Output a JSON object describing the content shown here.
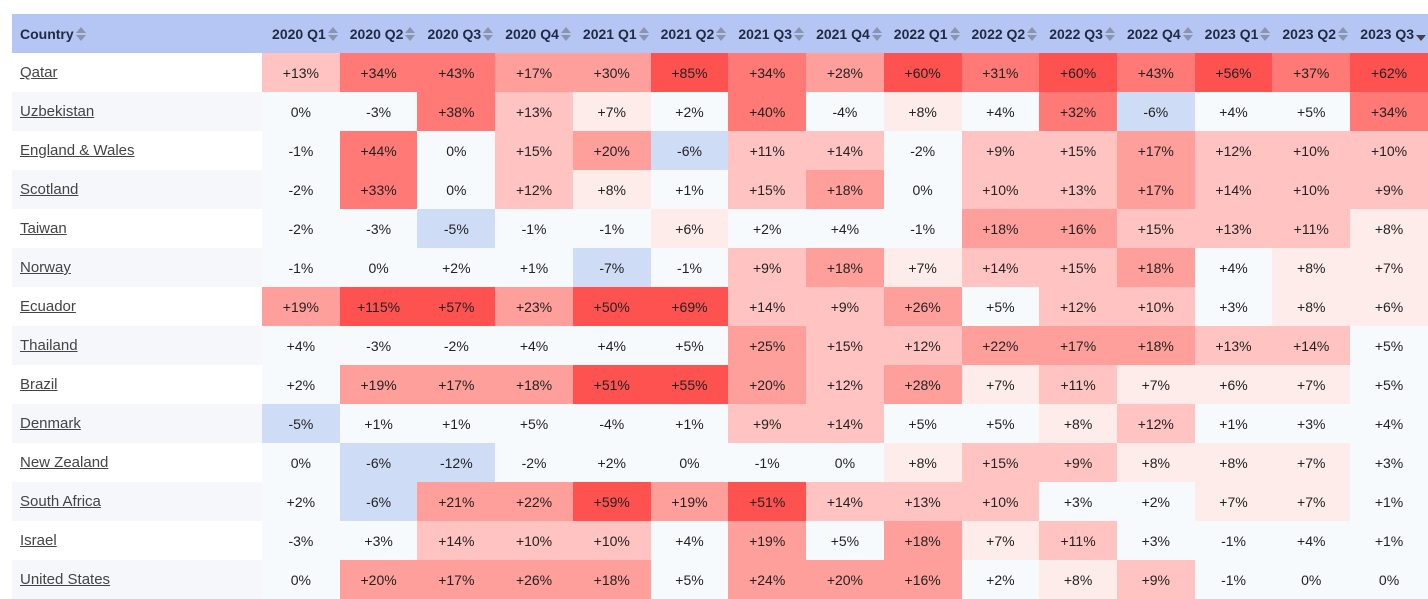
{
  "table": {
    "country_header": "Country",
    "columns": [
      "2020 Q1",
      "2020 Q2",
      "2020 Q3",
      "2020 Q4",
      "2021 Q1",
      "2021 Q2",
      "2021 Q3",
      "2021 Q4",
      "2022 Q1",
      "2022 Q2",
      "2022 Q3",
      "2022 Q4",
      "2023 Q1",
      "2023 Q2",
      "2023 Q3"
    ],
    "sorted_column": "2023 Q3",
    "sort_direction": "desc",
    "colors": {
      "header_bg": "#b6c6f4",
      "negative": "#cfdcf6",
      "neutral": "#f7fafd",
      "positive_scale": [
        "#fdecea",
        "#ffc4c2",
        "#ff9f9c",
        "#ff7a76",
        "#fe5251"
      ]
    },
    "rows": [
      {
        "country": "Qatar",
        "values": [
          "+13%",
          "+34%",
          "+43%",
          "+17%",
          "+30%",
          "+85%",
          "+34%",
          "+28%",
          "+60%",
          "+31%",
          "+60%",
          "+43%",
          "+56%",
          "+37%",
          "+62%"
        ]
      },
      {
        "country": "Uzbekistan",
        "values": [
          "0%",
          "-3%",
          "+38%",
          "+13%",
          "+7%",
          "+2%",
          "+40%",
          "-4%",
          "+8%",
          "+4%",
          "+32%",
          "-6%",
          "+4%",
          "+5%",
          "+34%"
        ]
      },
      {
        "country": "England & Wales",
        "values": [
          "-1%",
          "+44%",
          "0%",
          "+15%",
          "+20%",
          "-6%",
          "+11%",
          "+14%",
          "-2%",
          "+9%",
          "+15%",
          "+17%",
          "+12%",
          "+10%",
          "+10%"
        ]
      },
      {
        "country": "Scotland",
        "values": [
          "-2%",
          "+33%",
          "0%",
          "+12%",
          "+8%",
          "+1%",
          "+15%",
          "+18%",
          "0%",
          "+10%",
          "+13%",
          "+17%",
          "+14%",
          "+10%",
          "+9%"
        ]
      },
      {
        "country": "Taiwan",
        "values": [
          "-2%",
          "-3%",
          "-5%",
          "-1%",
          "-1%",
          "+6%",
          "+2%",
          "+4%",
          "-1%",
          "+18%",
          "+16%",
          "+15%",
          "+13%",
          "+11%",
          "+8%"
        ]
      },
      {
        "country": "Norway",
        "values": [
          "-1%",
          "0%",
          "+2%",
          "+1%",
          "-7%",
          "-1%",
          "+9%",
          "+18%",
          "+7%",
          "+14%",
          "+15%",
          "+18%",
          "+4%",
          "+8%",
          "+7%"
        ]
      },
      {
        "country": "Ecuador",
        "values": [
          "+19%",
          "+115%",
          "+57%",
          "+23%",
          "+50%",
          "+69%",
          "+14%",
          "+9%",
          "+26%",
          "+5%",
          "+12%",
          "+10%",
          "+3%",
          "+8%",
          "+6%"
        ]
      },
      {
        "country": "Thailand",
        "values": [
          "+4%",
          "-3%",
          "-2%",
          "+4%",
          "+4%",
          "+5%",
          "+25%",
          "+15%",
          "+12%",
          "+22%",
          "+17%",
          "+18%",
          "+13%",
          "+14%",
          "+5%"
        ]
      },
      {
        "country": "Brazil",
        "values": [
          "+2%",
          "+19%",
          "+17%",
          "+18%",
          "+51%",
          "+55%",
          "+20%",
          "+12%",
          "+28%",
          "+7%",
          "+11%",
          "+7%",
          "+6%",
          "+7%",
          "+5%"
        ]
      },
      {
        "country": "Denmark",
        "values": [
          "-5%",
          "+1%",
          "+1%",
          "+5%",
          "-4%",
          "+1%",
          "+9%",
          "+14%",
          "+5%",
          "+5%",
          "+8%",
          "+12%",
          "+1%",
          "+3%",
          "+4%"
        ]
      },
      {
        "country": "New Zealand",
        "values": [
          "0%",
          "-6%",
          "-12%",
          "-2%",
          "+2%",
          "0%",
          "-1%",
          "0%",
          "+8%",
          "+15%",
          "+9%",
          "+8%",
          "+8%",
          "+7%",
          "+3%"
        ]
      },
      {
        "country": "South Africa",
        "values": [
          "+2%",
          "-6%",
          "+21%",
          "+22%",
          "+59%",
          "+19%",
          "+51%",
          "+14%",
          "+13%",
          "+10%",
          "+3%",
          "+2%",
          "+7%",
          "+7%",
          "+1%"
        ]
      },
      {
        "country": "Israel",
        "values": [
          "-3%",
          "+3%",
          "+14%",
          "+10%",
          "+10%",
          "+4%",
          "+19%",
          "+5%",
          "+18%",
          "+7%",
          "+11%",
          "+3%",
          "-1%",
          "+4%",
          "+1%"
        ]
      },
      {
        "country": "United States",
        "values": [
          "0%",
          "+20%",
          "+17%",
          "+26%",
          "+18%",
          "+5%",
          "+24%",
          "+20%",
          "+16%",
          "+2%",
          "+8%",
          "+9%",
          "-1%",
          "0%",
          "0%"
        ]
      }
    ]
  }
}
